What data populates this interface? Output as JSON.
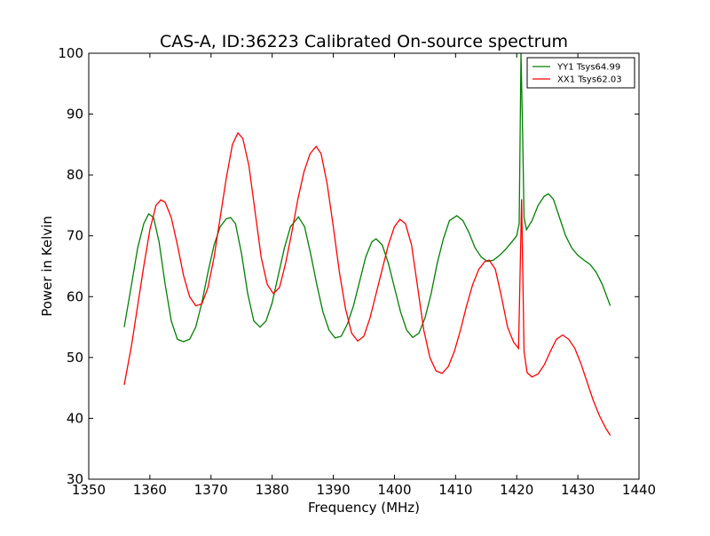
{
  "chart_data": {
    "type": "line",
    "title": "CAS-A, ID:36223 Calibrated On-source spectrum",
    "xlabel": "Frequency (MHz)",
    "ylabel": "Power in Kelvin",
    "xlim": [
      1350,
      1440
    ],
    "ylim": [
      30,
      100
    ],
    "xticks": [
      1350,
      1360,
      1370,
      1380,
      1390,
      1400,
      1410,
      1420,
      1430,
      1440
    ],
    "yticks": [
      30,
      40,
      50,
      60,
      70,
      80,
      90,
      100
    ],
    "grid": false,
    "legend_position": "top-right",
    "series": [
      {
        "name": "YY1 Tsys64.99",
        "color": "#008000",
        "points": [
          [
            1355.8,
            55.0
          ],
          [
            1357.0,
            62.0
          ],
          [
            1358.0,
            68.0
          ],
          [
            1359.0,
            72.0
          ],
          [
            1359.8,
            73.6
          ],
          [
            1360.6,
            73.0
          ],
          [
            1361.5,
            69.0
          ],
          [
            1362.5,
            62.0
          ],
          [
            1363.5,
            56.0
          ],
          [
            1364.5,
            53.0
          ],
          [
            1365.5,
            52.6
          ],
          [
            1366.5,
            53.0
          ],
          [
            1367.5,
            55.0
          ],
          [
            1368.5,
            59.0
          ],
          [
            1369.5,
            64.0
          ],
          [
            1370.5,
            68.5
          ],
          [
            1371.5,
            71.5
          ],
          [
            1372.5,
            72.8
          ],
          [
            1373.2,
            73.0
          ],
          [
            1374.0,
            72.0
          ],
          [
            1375.0,
            67.0
          ],
          [
            1376.0,
            60.5
          ],
          [
            1377.0,
            56.0
          ],
          [
            1378.0,
            55.0
          ],
          [
            1379.0,
            56.0
          ],
          [
            1380.0,
            59.0
          ],
          [
            1381.0,
            63.5
          ],
          [
            1382.0,
            68.0
          ],
          [
            1383.0,
            71.5
          ],
          [
            1384.3,
            73.1
          ],
          [
            1385.3,
            71.5
          ],
          [
            1386.3,
            67.0
          ],
          [
            1387.3,
            62.0
          ],
          [
            1388.3,
            57.5
          ],
          [
            1389.3,
            54.5
          ],
          [
            1390.3,
            53.2
          ],
          [
            1391.3,
            53.5
          ],
          [
            1392.3,
            55.5
          ],
          [
            1393.3,
            58.5
          ],
          [
            1394.3,
            62.5
          ],
          [
            1395.3,
            66.5
          ],
          [
            1396.3,
            69.0
          ],
          [
            1397.0,
            69.5
          ],
          [
            1398.0,
            68.5
          ],
          [
            1399.0,
            65.5
          ],
          [
            1400.0,
            61.5
          ],
          [
            1401.0,
            57.5
          ],
          [
            1402.0,
            54.5
          ],
          [
            1403.0,
            53.3
          ],
          [
            1404.0,
            54.0
          ],
          [
            1405.0,
            56.5
          ],
          [
            1406.0,
            60.5
          ],
          [
            1407.0,
            65.5
          ],
          [
            1408.0,
            69.5
          ],
          [
            1409.0,
            72.5
          ],
          [
            1410.2,
            73.3
          ],
          [
            1411.2,
            72.5
          ],
          [
            1412.2,
            70.5
          ],
          [
            1413.2,
            68.0
          ],
          [
            1414.2,
            66.5
          ],
          [
            1415.2,
            65.8
          ],
          [
            1416.2,
            66.0
          ],
          [
            1417.2,
            66.8
          ],
          [
            1418.2,
            67.8
          ],
          [
            1419.2,
            69.0
          ],
          [
            1420.0,
            70.0
          ],
          [
            1420.4,
            72.0
          ],
          [
            1420.7,
            100.0
          ],
          [
            1421.0,
            85.0
          ],
          [
            1421.2,
            73.0
          ],
          [
            1421.6,
            71.0
          ],
          [
            1422.5,
            72.5
          ],
          [
            1423.5,
            75.0
          ],
          [
            1424.5,
            76.5
          ],
          [
            1425.2,
            76.9
          ],
          [
            1426.0,
            76.0
          ],
          [
            1427.0,
            73.0
          ],
          [
            1428.0,
            70.0
          ],
          [
            1429.0,
            68.0
          ],
          [
            1430.0,
            66.8
          ],
          [
            1431.0,
            66.0
          ],
          [
            1432.0,
            65.3
          ],
          [
            1433.0,
            64.0
          ],
          [
            1434.0,
            62.0
          ],
          [
            1435.3,
            58.5
          ]
        ]
      },
      {
        "name": "XX1 Tsys62.03",
        "color": "#ff0000",
        "points": [
          [
            1355.8,
            45.5
          ],
          [
            1357.0,
            52.0
          ],
          [
            1358.0,
            58.5
          ],
          [
            1359.0,
            65.0
          ],
          [
            1360.0,
            71.0
          ],
          [
            1361.0,
            75.0
          ],
          [
            1361.8,
            75.9
          ],
          [
            1362.5,
            75.5
          ],
          [
            1363.5,
            73.0
          ],
          [
            1364.5,
            68.5
          ],
          [
            1365.5,
            63.5
          ],
          [
            1366.5,
            60.0
          ],
          [
            1367.5,
            58.5
          ],
          [
            1368.5,
            58.8
          ],
          [
            1369.5,
            61.5
          ],
          [
            1370.5,
            66.5
          ],
          [
            1371.5,
            73.0
          ],
          [
            1372.5,
            79.5
          ],
          [
            1373.5,
            85.0
          ],
          [
            1374.4,
            86.9
          ],
          [
            1375.2,
            86.0
          ],
          [
            1376.2,
            81.5
          ],
          [
            1377.2,
            74.0
          ],
          [
            1378.2,
            66.5
          ],
          [
            1379.2,
            62.0
          ],
          [
            1380.2,
            60.5
          ],
          [
            1381.2,
            61.5
          ],
          [
            1382.2,
            65.5
          ],
          [
            1383.2,
            70.5
          ],
          [
            1384.2,
            76.0
          ],
          [
            1385.2,
            80.5
          ],
          [
            1386.2,
            83.5
          ],
          [
            1387.2,
            84.7
          ],
          [
            1388.0,
            83.5
          ],
          [
            1389.0,
            78.5
          ],
          [
            1390.0,
            71.5
          ],
          [
            1391.0,
            64.0
          ],
          [
            1392.0,
            58.0
          ],
          [
            1393.0,
            54.0
          ],
          [
            1394.0,
            52.7
          ],
          [
            1395.0,
            53.5
          ],
          [
            1396.0,
            56.5
          ],
          [
            1397.0,
            60.5
          ],
          [
            1398.0,
            64.5
          ],
          [
            1399.0,
            68.5
          ],
          [
            1400.0,
            71.5
          ],
          [
            1400.9,
            72.7
          ],
          [
            1401.8,
            72.0
          ],
          [
            1402.8,
            68.5
          ],
          [
            1403.8,
            61.5
          ],
          [
            1404.8,
            54.5
          ],
          [
            1405.8,
            50.0
          ],
          [
            1406.8,
            47.8
          ],
          [
            1407.8,
            47.4
          ],
          [
            1408.8,
            48.5
          ],
          [
            1409.8,
            51.0
          ],
          [
            1410.8,
            54.5
          ],
          [
            1411.8,
            58.5
          ],
          [
            1412.8,
            62.0
          ],
          [
            1413.8,
            64.5
          ],
          [
            1414.8,
            65.8
          ],
          [
            1415.5,
            66.0
          ],
          [
            1416.5,
            64.5
          ],
          [
            1417.5,
            60.0
          ],
          [
            1418.5,
            55.0
          ],
          [
            1419.5,
            52.5
          ],
          [
            1420.3,
            51.5
          ],
          [
            1420.8,
            76.0
          ],
          [
            1421.2,
            51.0
          ],
          [
            1421.7,
            47.5
          ],
          [
            1422.5,
            46.8
          ],
          [
            1423.5,
            47.3
          ],
          [
            1424.5,
            48.8
          ],
          [
            1425.5,
            51.0
          ],
          [
            1426.5,
            53.0
          ],
          [
            1427.5,
            53.7
          ],
          [
            1428.5,
            53.0
          ],
          [
            1429.5,
            51.5
          ],
          [
            1430.5,
            49.0
          ],
          [
            1431.5,
            46.0
          ],
          [
            1432.5,
            43.0
          ],
          [
            1433.5,
            40.5
          ],
          [
            1434.5,
            38.5
          ],
          [
            1435.3,
            37.2
          ]
        ]
      }
    ]
  }
}
